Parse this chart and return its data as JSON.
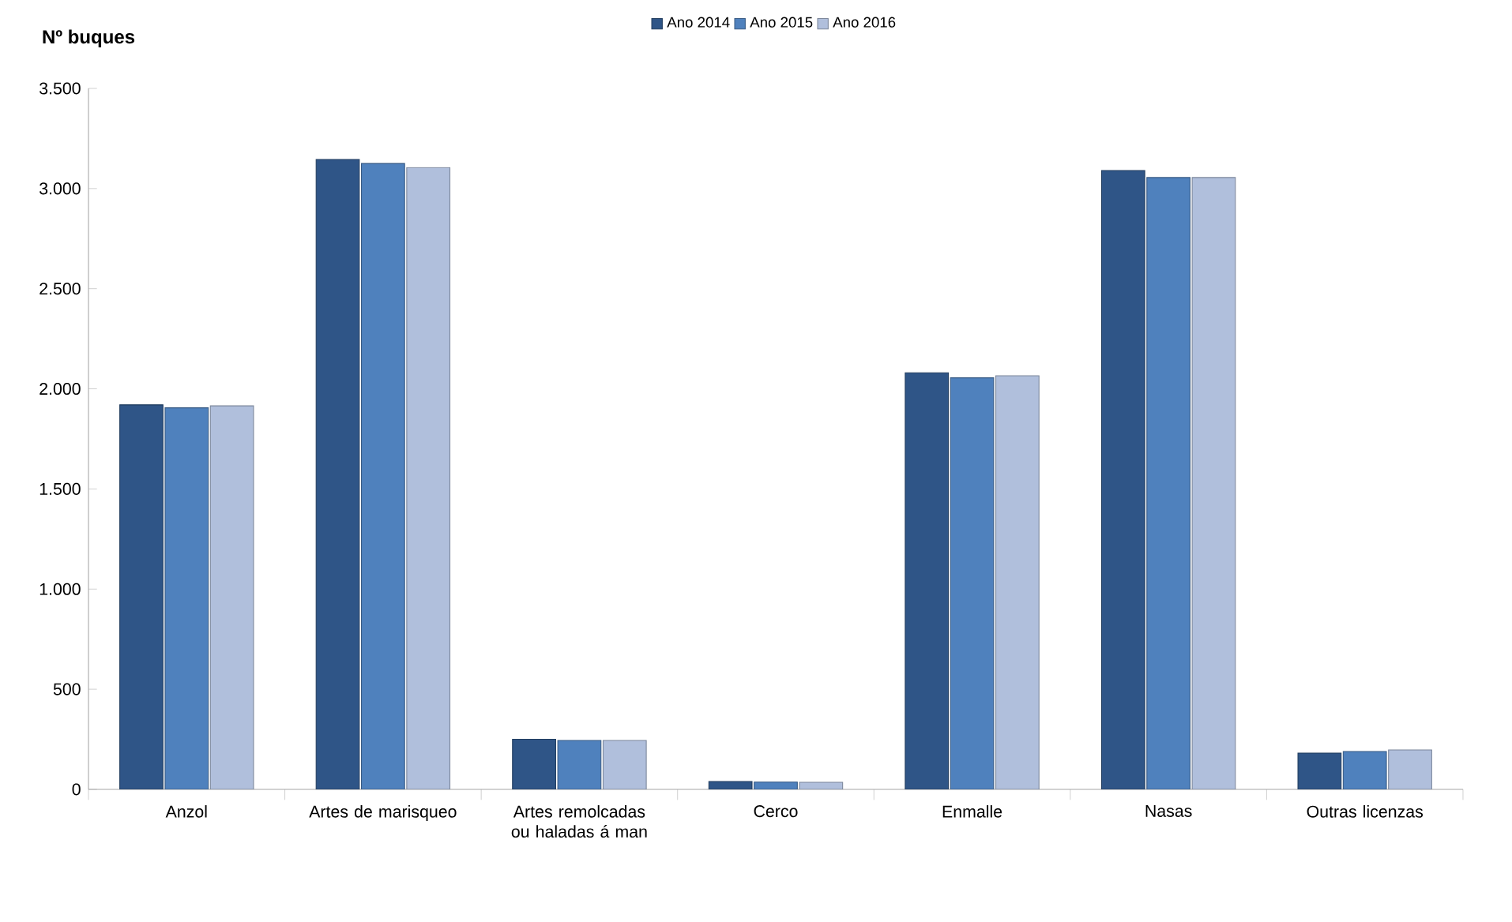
{
  "chart_data": {
    "type": "bar",
    "ylabel": "Nº  buques",
    "categories": [
      "Anzol",
      "Artes de marisqueo",
      "Artes remolcadas ou haladas á man",
      "Cerco",
      "Enmalle",
      "Nasas",
      "Outras licenzas"
    ],
    "series": [
      {
        "name": "Ano 2014",
        "color": "#2f5587",
        "values": [
          1920,
          3145,
          250,
          39,
          2080,
          3090,
          181
        ]
      },
      {
        "name": "Ano 2015",
        "color": "#4f81bd",
        "values": [
          1905,
          3125,
          244,
          36,
          2055,
          3055,
          189
        ]
      },
      {
        "name": "Ano 2016",
        "color": "#b0bfdc",
        "values": [
          1915,
          3105,
          244,
          35,
          2065,
          3055,
          197
        ]
      }
    ],
    "ylim": [
      0,
      3500
    ],
    "yticks": [
      {
        "value": 0,
        "label": "0"
      },
      {
        "value": 500,
        "label": "500"
      },
      {
        "value": 1000,
        "label": "1.000"
      },
      {
        "value": 1500,
        "label": "1.500"
      },
      {
        "value": 2000,
        "label": "2.000"
      },
      {
        "value": 2500,
        "label": "2.500"
      },
      {
        "value": 3000,
        "label": "3.000"
      },
      {
        "value": 3500,
        "label": "3.500"
      }
    ],
    "legend": "top",
    "grid": false
  }
}
